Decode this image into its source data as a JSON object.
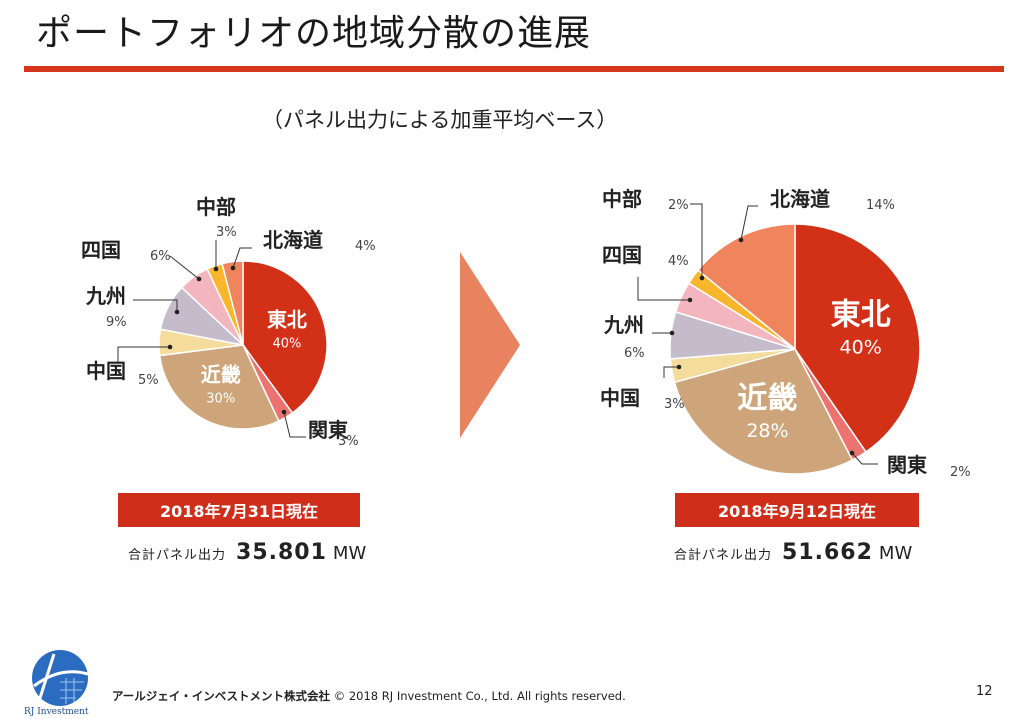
{
  "slide": {
    "title": "ポートフォリオの地域分散の進展",
    "subtitle": "（パネル出力による加重平均ベース）",
    "footer_company": "アールジェイ・インベストメント株式会社",
    "footer_copyright": "© 2018 RJ Investment Co., Ltd. All rights reserved.",
    "page_number": "12",
    "logo_text": "RJ Investment"
  },
  "colors": {
    "accent": "#d6341c",
    "band": "#cf2e1a",
    "arrow": "#e9825f"
  },
  "chart_data": [
    {
      "type": "pie",
      "date_label": "2018年7月31日現在",
      "total_label": "合計パネル出力",
      "total_value": "35.801",
      "total_unit": "MW",
      "slices": [
        {
          "name": "東北",
          "value": 40,
          "label": "40%",
          "color": "#d23118"
        },
        {
          "name": "関東",
          "value": 3,
          "label": "3%",
          "color": "#ec7370"
        },
        {
          "name": "近畿",
          "value": 30,
          "label": "30%",
          "color": "#cea57a"
        },
        {
          "name": "中国",
          "value": 5,
          "label": "5%",
          "color": "#f3dc9c"
        },
        {
          "name": "九州",
          "value": 9,
          "label": "9%",
          "color": "#c4bccb"
        },
        {
          "name": "四国",
          "value": 6,
          "label": "6%",
          "color": "#f3b6be"
        },
        {
          "name": "中部",
          "value": 3,
          "label": "3%",
          "color": "#f8b62c"
        },
        {
          "name": "北海道",
          "value": 4,
          "label": "4%",
          "color": "#f0845d"
        }
      ]
    },
    {
      "type": "pie",
      "date_label": "2018年9月12日現在",
      "total_label": "合計パネル出力",
      "total_value": "51.662",
      "total_unit": "MW",
      "slices": [
        {
          "name": "東北",
          "value": 40,
          "label": "40%",
          "color": "#d23118"
        },
        {
          "name": "関東",
          "value": 2,
          "label": "2%",
          "color": "#ec7370"
        },
        {
          "name": "近畿",
          "value": 28,
          "label": "28%",
          "color": "#cea57a"
        },
        {
          "name": "中国",
          "value": 3,
          "label": "3%",
          "color": "#f3dc9c"
        },
        {
          "name": "九州",
          "value": 6,
          "label": "6%",
          "color": "#c4bccb"
        },
        {
          "name": "四国",
          "value": 4,
          "label": "4%",
          "color": "#f3b6be"
        },
        {
          "name": "中部",
          "value": 2,
          "label": "2%",
          "color": "#f8b62c"
        },
        {
          "name": "北海道",
          "value": 14,
          "label": "14%",
          "color": "#f0845d"
        }
      ]
    }
  ]
}
